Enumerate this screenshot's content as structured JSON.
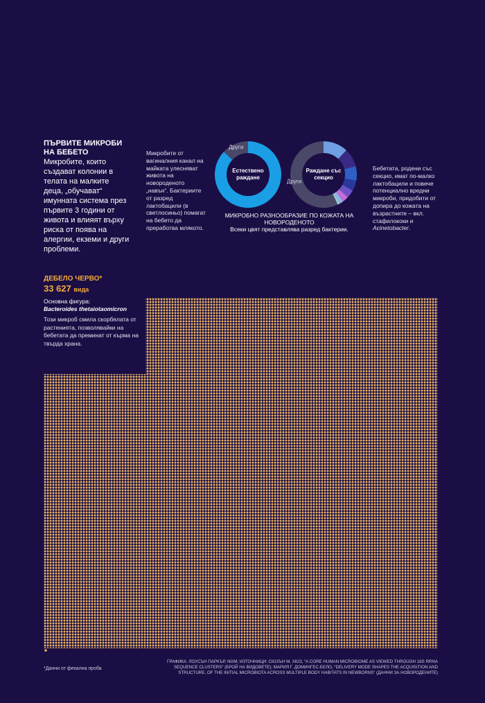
{
  "intro": {
    "title": "ПЪРВИТЕ МИКРОБИ НА БЕБЕТО",
    "text": "Микробите, които създават колонии в телата на малките деца, „обучават“ имунната система през първите 3 години от живота и влияят върху риска от поява на алергии, екземи и други проблеми."
  },
  "vaginal_note": "Микробите от вагиналния канал на майката улесняват живота на новороденото „навън“. Бактериите от разред лактобацили (в светлосиньо) помагат на бебето да преработва млякото.",
  "cesarean_note": {
    "text": "Бебетата, родени със секцио, имат по-малко лактобацили и повече потенциално вредни микроби, придобити от допира до кожата на възрастните – вкл. стафилококи и",
    "italic": "Acinetobacter",
    "end": "."
  },
  "skin_caption": {
    "title": "МИКРОБНО РАЗНООБРАЗИЕ ПО КОЖАТА НА НОВОРОДЕНОТО",
    "subtitle": "Всеки цвят представлява разред бактерии."
  },
  "chart_data": [
    {
      "type": "pie",
      "title": "Естествено раждане",
      "categories": [
        null,
        "Други"
      ],
      "values": [
        87,
        13
      ],
      "colors": [
        "#1a9fe6",
        "#4a4868"
      ]
    },
    {
      "type": "pie",
      "title": "Раждане със секцио",
      "categories": [
        null,
        null,
        null,
        null,
        null,
        null,
        null,
        null,
        "Други"
      ],
      "values": [
        12,
        9,
        7,
        5,
        4,
        3,
        2,
        1,
        57
      ],
      "colors": [
        "#6f9fe2",
        "#3b2a85",
        "#2e5fc6",
        "#28389c",
        "#6d52c8",
        "#c26cd4",
        "#8cb4ea",
        "#9fd0c8",
        "#4a4868"
      ]
    }
  ],
  "colon": {
    "title": "ДЕБЕЛО ЧЕРВО*",
    "count": "33 627",
    "unit": "вида",
    "figure_label": "Основна фигура:",
    "figure_name": "Bacteroides thetaiotaomicron",
    "text": "Този микроб смила скорбялата от растенията, позволявайки на бебетата да преминат от кърма на твърда храна."
  },
  "footnote": "*Данни от фекална проба",
  "credits": "ГРАФИКА: ЛОУСЪН ПАРКЪР, NGM; ИЗТОЧНИЦИ: СЮЗЪН М. ХЮЗ, “A CORE HUMAN MICROBIOME AS VIEWED THROUGH 16S RRNA SEQUENCE CLUSTERS” (БРОЙ НА ВИДОВЕТЕ); МАРИЯ Г. ДОМИНГЕС-БЕЛО, “DELIVERY MODE SHAPES THE ACQUISITION AND STRUCTURE, OF THE INITIAL MICROBIOTA ACROSS MULTIPLE BODY HABITATS IN NEWBORNS” (ДАННИ ЗА НОВОРОДЕНИТЕ)"
}
